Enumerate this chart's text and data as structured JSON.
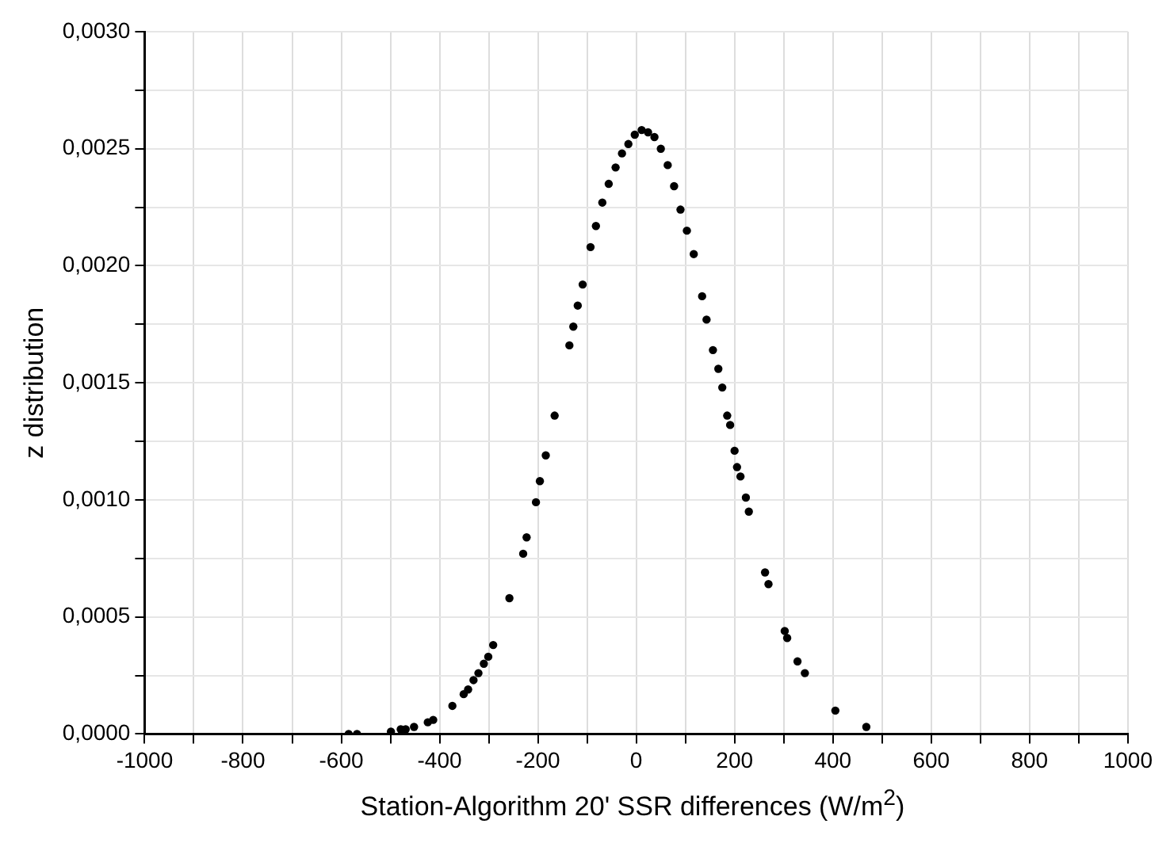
{
  "chart_data": {
    "type": "scatter",
    "xlabel": "Station-Algorithm 20' SSR differences (W/m$^{2}$)",
    "ylabel": "z distribution",
    "x": [
      -585,
      -568,
      -499,
      -479,
      -469,
      -452,
      -424,
      -413,
      -374,
      -351,
      -342,
      -331,
      -321,
      -310,
      -301,
      -291,
      -258,
      -230,
      -223,
      -204,
      -196,
      -184,
      -166,
      -136,
      -128,
      -119,
      -109,
      -93,
      -82,
      -69,
      -56,
      -42,
      -29,
      -16,
      -3,
      11,
      24,
      37,
      50,
      64,
      77,
      90,
      103,
      117,
      134,
      143,
      156,
      167,
      175,
      185,
      191,
      200,
      205,
      212,
      223,
      229,
      262,
      269,
      302,
      307,
      328,
      343,
      405,
      468
    ],
    "series": [
      {
        "color": "#000000",
        "values": [
          0,
          0,
          1e-05,
          2e-05,
          2e-05,
          3e-05,
          5e-05,
          6e-05,
          0.00012,
          0.00017,
          0.00019,
          0.00023,
          0.00026,
          0.0003,
          0.00033,
          0.00038,
          0.00058,
          0.00077,
          0.00084,
          0.00099,
          0.00108,
          0.00119,
          0.00136,
          0.00166,
          0.00174,
          0.00183,
          0.00192,
          0.00208,
          0.00217,
          0.00227,
          0.00235,
          0.00242,
          0.00248,
          0.00252,
          0.00256,
          0.00258,
          0.00257,
          0.00255,
          0.0025,
          0.00243,
          0.00234,
          0.00224,
          0.00215,
          0.00205,
          0.00187,
          0.00177,
          0.00164,
          0.00156,
          0.00148,
          0.00136,
          0.00132,
          0.00121,
          0.00114,
          0.0011,
          0.00101,
          0.00095,
          0.00069,
          0.00064,
          0.00044,
          0.00041,
          0.00031,
          0.00026,
          0.0001,
          3e-05
        ]
      }
    ],
    "xlim": [
      -1000,
      1000
    ],
    "xticks": [
      -1000,
      {
        "value": -900,
        "label": null
      },
      -800,
      {
        "value": -700,
        "label": null
      },
      -600,
      {
        "value": -500,
        "label": null
      },
      -400,
      {
        "value": -300,
        "label": null
      },
      -200,
      {
        "value": -100,
        "label": null
      },
      0,
      {
        "value": 100,
        "label": null
      },
      200,
      {
        "value": 300,
        "label": null
      },
      400,
      {
        "value": 500,
        "label": null
      },
      600,
      {
        "value": 700,
        "label": null
      },
      800,
      {
        "value": 900,
        "label": null
      },
      1000
    ],
    "ylim": [
      0,
      0.003
    ],
    "yticks": [
      {
        "value": 0,
        "label": "0,0000"
      },
      {
        "value": 0.00025,
        "label": null
      },
      {
        "value": 0.0005,
        "label": "0,0005"
      },
      {
        "value": 0.00075,
        "label": null
      },
      {
        "value": 0.001,
        "label": "0,0010"
      },
      {
        "value": 0.00125,
        "label": null
      },
      {
        "value": 0.0015,
        "label": "0,0015"
      },
      {
        "value": 0.00175,
        "label": null
      },
      {
        "value": 0.002,
        "label": "0,0020"
      },
      {
        "value": 0.00225,
        "label": null
      },
      {
        "value": 0.0025,
        "label": "0,0025"
      },
      {
        "value": 0.00275,
        "label": null
      },
      {
        "value": 0.003,
        "label": "0,0030"
      }
    ],
    "grid": true,
    "marker": "circle"
  }
}
